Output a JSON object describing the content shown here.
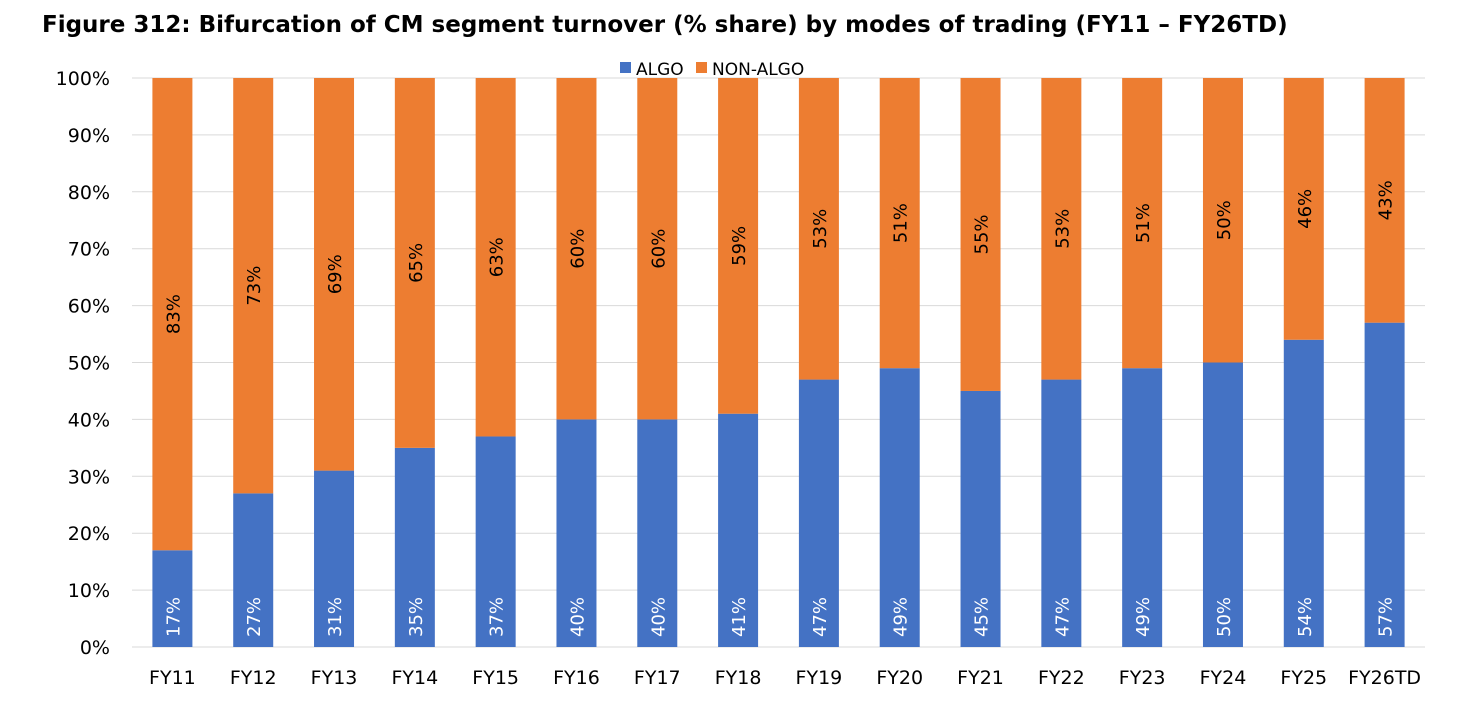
{
  "chart_data": {
    "type": "bar",
    "stacked": true,
    "title": "Figure 312: Bifurcation of CM segment turnover (% share) by modes of trading (FY11 – FY26TD)",
    "categories": [
      "FY11",
      "FY12",
      "FY13",
      "FY14",
      "FY15",
      "FY16",
      "FY17",
      "FY18",
      "FY19",
      "FY20",
      "FY21",
      "FY22",
      "FY23",
      "FY24",
      "FY25",
      "FY26TD"
    ],
    "series": [
      {
        "name": "ALGO",
        "color": "#4472C4",
        "label_color": "#ffffff",
        "values": [
          17,
          27,
          31,
          35,
          37,
          40,
          40,
          41,
          47,
          49,
          45,
          47,
          49,
          50,
          54,
          57
        ],
        "labels": [
          "17%",
          "27%",
          "31%",
          "35%",
          "37%",
          "40%",
          "40%",
          "41%",
          "47%",
          "49%",
          "45%",
          "47%",
          "49%",
          "50%",
          "54%",
          "57%"
        ]
      },
      {
        "name": "NON-ALGO",
        "color": "#ED7D31",
        "label_color": "#000000",
        "values": [
          83,
          73,
          69,
          65,
          63,
          60,
          60,
          59,
          53,
          51,
          55,
          53,
          51,
          50,
          46,
          43
        ],
        "labels": [
          "83%",
          "73%",
          "69%",
          "65%",
          "63%",
          "60%",
          "60%",
          "59%",
          "53%",
          "51%",
          "55%",
          "53%",
          "51%",
          "50%",
          "46%",
          "43%"
        ]
      }
    ],
    "ylim": [
      0,
      100
    ],
    "yticks": [
      "0%",
      "10%",
      "20%",
      "30%",
      "40%",
      "50%",
      "60%",
      "70%",
      "80%",
      "90%",
      "100%"
    ],
    "xlabel": "",
    "ylabel": "",
    "grid": true,
    "legend": "top-center",
    "gridline_color": "#D9D9D9"
  }
}
